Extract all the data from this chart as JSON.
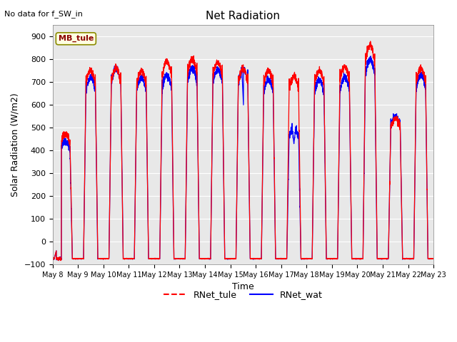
{
  "title": "Net Radiation",
  "xlabel": "Time",
  "ylabel": "Solar Radiation (W/m2)",
  "annotation": "No data for f_SW_in",
  "legend_box_label": "MB_tule",
  "legend_entries": [
    "RNet_tule",
    "RNet_wat"
  ],
  "ylim": [
    -100,
    950
  ],
  "yticks": [
    -100,
    0,
    100,
    200,
    300,
    400,
    500,
    600,
    700,
    800,
    900
  ],
  "background_color": "#e8e8e8",
  "n_days": 15,
  "date_start": 8,
  "peaks_tule": [
    470,
    750,
    760,
    750,
    790,
    800,
    790,
    760,
    750,
    725,
    750,
    770,
    860,
    540,
    760
  ],
  "peaks_wat": [
    440,
    720,
    760,
    720,
    730,
    760,
    755,
    760,
    710,
    500,
    710,
    720,
    800,
    550,
    730
  ],
  "night_value": -75
}
